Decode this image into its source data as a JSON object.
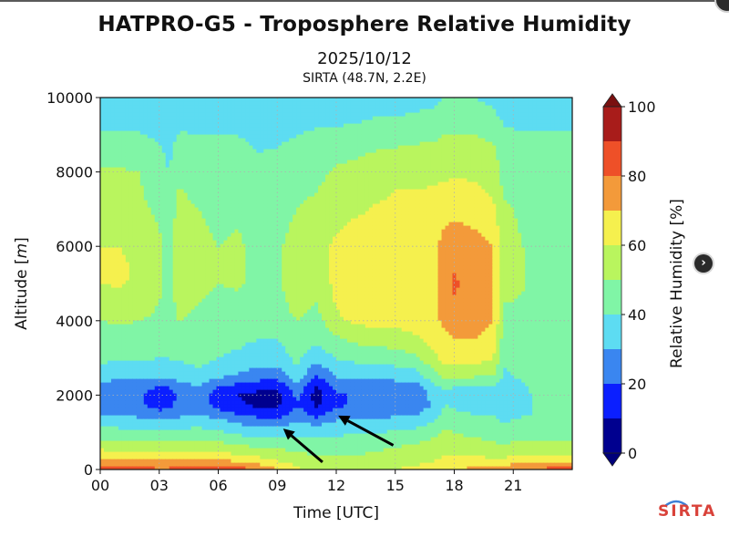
{
  "header": {
    "title": "HATPRO-G5 - Troposphere Relative Humidity",
    "date": "2025/10/12",
    "site": "SIRTA (48.7N, 2.2E)"
  },
  "logo": {
    "text": "SIRTA"
  },
  "nav": {
    "next_icon": "chevron-right-icon"
  },
  "chart_data": {
    "type": "heatmap",
    "title": "HATPRO-G5 - Troposphere Relative Humidity",
    "subtitle": "2025/10/12",
    "location": "SIRTA (48.7N, 2.2E)",
    "xlabel": "Time [UTC]",
    "ylabel": "Altitude [m]",
    "ylabel_base": "Altitude [",
    "ylabel_unit": "m",
    "ylabel_close": "]",
    "xlim": [
      0,
      24
    ],
    "ylim": [
      0,
      10000
    ],
    "x_ticks": [
      0,
      3,
      6,
      9,
      12,
      15,
      18,
      21
    ],
    "x_tick_labels": [
      "00",
      "03",
      "06",
      "09",
      "12",
      "15",
      "18",
      "21"
    ],
    "y_ticks": [
      0,
      2000,
      4000,
      6000,
      8000,
      10000
    ],
    "y_tick_labels": [
      "0",
      "2000",
      "4000",
      "6000",
      "8000",
      "10000"
    ],
    "grid": true,
    "colorbar": {
      "label": "Relative Humidity [%]",
      "range": [
        0,
        100
      ],
      "levels": [
        0,
        10,
        20,
        30,
        40,
        50,
        60,
        70,
        80,
        90,
        100
      ],
      "ticks": [
        0,
        20,
        40,
        60,
        80,
        100
      ],
      "tick_labels": [
        "0",
        "20",
        "40",
        "60",
        "80",
        "100"
      ],
      "colors": [
        "#00008f",
        "#0b1fff",
        "#3a86f0",
        "#5ddcf2",
        "#80f5a6",
        "#b9f55e",
        "#f5f04e",
        "#f39a3a",
        "#ee5028",
        "#a81c1a"
      ],
      "extend": "both",
      "under_color": "#00007a",
      "over_color": "#7a1010"
    },
    "x_hours": [
      0,
      1,
      2,
      3,
      3.5,
      4,
      5,
      6,
      7,
      8,
      9,
      10,
      11,
      12,
      13,
      14,
      15,
      16,
      17,
      17.5,
      18,
      19,
      20,
      20.5,
      21,
      22,
      23,
      24
    ],
    "y_levels_m": [
      0,
      250,
      500,
      750,
      1000,
      1250,
      1500,
      1750,
      2000,
      2250,
      2500,
      2750,
      3000,
      3500,
      4000,
      4500,
      5000,
      5500,
      6000,
      6500,
      7000,
      7500,
      8000,
      8500,
      9000,
      9500,
      10000
    ],
    "rh_profiles": [
      [
        88,
        72,
        62,
        52,
        44,
        38,
        28,
        22,
        22,
        25,
        34,
        39,
        41,
        45,
        50,
        55,
        60,
        62,
        60,
        56,
        55,
        52,
        51,
        47,
        41,
        36,
        35
      ],
      [
        86,
        70,
        60,
        51,
        43,
        37,
        28,
        22,
        22,
        24,
        33,
        38,
        41,
        45,
        51,
        55,
        61,
        62,
        60,
        56,
        54,
        52,
        51,
        47,
        41,
        36,
        35
      ],
      [
        84,
        70,
        60,
        50,
        43,
        36,
        27,
        22,
        22,
        24,
        33,
        38,
        41,
        44,
        50,
        54,
        58,
        58,
        56,
        54,
        52,
        51,
        50,
        47,
        41,
        36,
        35
      ],
      [
        82,
        70,
        60,
        50,
        42,
        33,
        24,
        14,
        14,
        20,
        30,
        36,
        40,
        44,
        48,
        50,
        52,
        52,
        52,
        50,
        48,
        46,
        44,
        42,
        38,
        35,
        35
      ],
      [
        82,
        70,
        60,
        50,
        42,
        35,
        25,
        18,
        16,
        21,
        31,
        36,
        40,
        43,
        45,
        46,
        46,
        46,
        46,
        45,
        44,
        42,
        40,
        38,
        35,
        35,
        35
      ],
      [
        84,
        71,
        60,
        50,
        42,
        36,
        27,
        22,
        22,
        26,
        34,
        38,
        41,
        44,
        50,
        53,
        57,
        56,
        56,
        55,
        53,
        51,
        48,
        45,
        41,
        36,
        35
      ],
      [
        86,
        72,
        60,
        50,
        43,
        38,
        30,
        25,
        25,
        30,
        38,
        40,
        42,
        45,
        48,
        50,
        52,
        52,
        52,
        51,
        50,
        47,
        45,
        43,
        40,
        36,
        35
      ],
      [
        88,
        72,
        60,
        50,
        42,
        35,
        25,
        16,
        15,
        21,
        31,
        37,
        40,
        43,
        46,
        48,
        50,
        50,
        50,
        49,
        48,
        46,
        44,
        42,
        40,
        36,
        35
      ],
      [
        85,
        68,
        56,
        47,
        38,
        30,
        20,
        12,
        10,
        17,
        28,
        33,
        38,
        42,
        46,
        48,
        51,
        51,
        51,
        50,
        49,
        47,
        45,
        43,
        40,
        36,
        35
      ],
      [
        80,
        64,
        54,
        45,
        36,
        27,
        16,
        8,
        7,
        14,
        24,
        30,
        35,
        40,
        44,
        46,
        48,
        48,
        48,
        47,
        46,
        44,
        42,
        40,
        38,
        35,
        35
      ],
      [
        72,
        60,
        52,
        44,
        35,
        26,
        14,
        8,
        7,
        12,
        22,
        30,
        35,
        40,
        43,
        45,
        48,
        48,
        48,
        47,
        46,
        45,
        43,
        41,
        38,
        35,
        35
      ],
      [
        62,
        56,
        50,
        44,
        38,
        32,
        25,
        20,
        22,
        28,
        36,
        40,
        42,
        46,
        50,
        55,
        58,
        58,
        55,
        52,
        50,
        48,
        46,
        44,
        40,
        36,
        35
      ],
      [
        56,
        52,
        48,
        43,
        36,
        28,
        16,
        8,
        6,
        10,
        18,
        26,
        34,
        42,
        46,
        50,
        52,
        55,
        56,
        54,
        52,
        50,
        48,
        46,
        42,
        37,
        35
      ],
      [
        56,
        52,
        48,
        43,
        38,
        32,
        25,
        18,
        18,
        22,
        30,
        36,
        40,
        48,
        58,
        61,
        63,
        63,
        62,
        59,
        56,
        53,
        51,
        48,
        42,
        37,
        35
      ],
      [
        56,
        52,
        48,
        44,
        40,
        34,
        27,
        22,
        22,
        25,
        33,
        38,
        42,
        52,
        62,
        64,
        66,
        66,
        66,
        63,
        58,
        56,
        53,
        49,
        44,
        38,
        35
      ],
      [
        58,
        54,
        50,
        45,
        40,
        35,
        27,
        22,
        22,
        24,
        33,
        38,
        43,
        54,
        63,
        64,
        66,
        66,
        66,
        64,
        61,
        58,
        55,
        51,
        45,
        40,
        36
      ],
      [
        60,
        56,
        52,
        47,
        41,
        35,
        28,
        22,
        22,
        24,
        34,
        39,
        45,
        55,
        63,
        65,
        66,
        66,
        66,
        64,
        62,
        60,
        56,
        52,
        46,
        40,
        36
      ],
      [
        62,
        58,
        54,
        49,
        43,
        36,
        28,
        23,
        22,
        25,
        35,
        41,
        48,
        58,
        64,
        65,
        66,
        66,
        66,
        65,
        62,
        60,
        57,
        53,
        47,
        41,
        37
      ],
      [
        64,
        60,
        56,
        52,
        48,
        42,
        36,
        32,
        34,
        38,
        45,
        52,
        58,
        64,
        68,
        69,
        69,
        69,
        68,
        66,
        63,
        61,
        58,
        54,
        48,
        42,
        38
      ],
      [
        66,
        62,
        58,
        55,
        52,
        48,
        44,
        40,
        38,
        42,
        52,
        58,
        63,
        67,
        72,
        74,
        75,
        75,
        74,
        70,
        65,
        62,
        58,
        55,
        50,
        44,
        40
      ],
      [
        70,
        64,
        58,
        54,
        50,
        46,
        42,
        38,
        36,
        40,
        50,
        58,
        65,
        70,
        76,
        78,
        82,
        78,
        76,
        72,
        67,
        63,
        59,
        56,
        50,
        45,
        40
      ],
      [
        72,
        64,
        56,
        52,
        48,
        44,
        40,
        36,
        35,
        40,
        50,
        58,
        64,
        70,
        74,
        76,
        76,
        76,
        74,
        70,
        66,
        62,
        58,
        55,
        50,
        44,
        40
      ],
      [
        72,
        62,
        54,
        50,
        46,
        42,
        40,
        36,
        35,
        40,
        48,
        56,
        60,
        66,
        70,
        70,
        70,
        70,
        70,
        66,
        62,
        58,
        55,
        52,
        48,
        42,
        38
      ],
      [
        76,
        62,
        54,
        48,
        44,
        40,
        37,
        36,
        35,
        36,
        38,
        40,
        42,
        46,
        48,
        50,
        52,
        54,
        55,
        53,
        51,
        49,
        47,
        45,
        42,
        38,
        36
      ],
      [
        80,
        64,
        56,
        50,
        45,
        41,
        39,
        38,
        37,
        38,
        40,
        42,
        44,
        46,
        48,
        50,
        52,
        52,
        52,
        51,
        50,
        48,
        46,
        44,
        41,
        38,
        36
      ],
      [
        82,
        66,
        56,
        50,
        45,
        42,
        40,
        40,
        40,
        41,
        42,
        44,
        45,
        47,
        48,
        48,
        49,
        49,
        48,
        47,
        46,
        45,
        44,
        43,
        41,
        38,
        36
      ],
      [
        84,
        66,
        56,
        50,
        45,
        42,
        41,
        41,
        41,
        42,
        43,
        44,
        45,
        46,
        47,
        47,
        47,
        47,
        46,
        46,
        45,
        45,
        44,
        42,
        41,
        38,
        36
      ],
      [
        84,
        66,
        56,
        50,
        45,
        42,
        41,
        41,
        41,
        42,
        43,
        44,
        45,
        46,
        47,
        47,
        47,
        47,
        46,
        46,
        45,
        45,
        44,
        42,
        41,
        38,
        36
      ]
    ],
    "annotations": [
      {
        "type": "arrow",
        "target_time_h": 9.3,
        "target_alt_m": 1100,
        "from_time_h": 11.3,
        "from_alt_m": 200
      },
      {
        "type": "arrow",
        "target_time_h": 12.1,
        "target_alt_m": 1450,
        "from_time_h": 14.9,
        "from_alt_m": 650
      }
    ]
  }
}
